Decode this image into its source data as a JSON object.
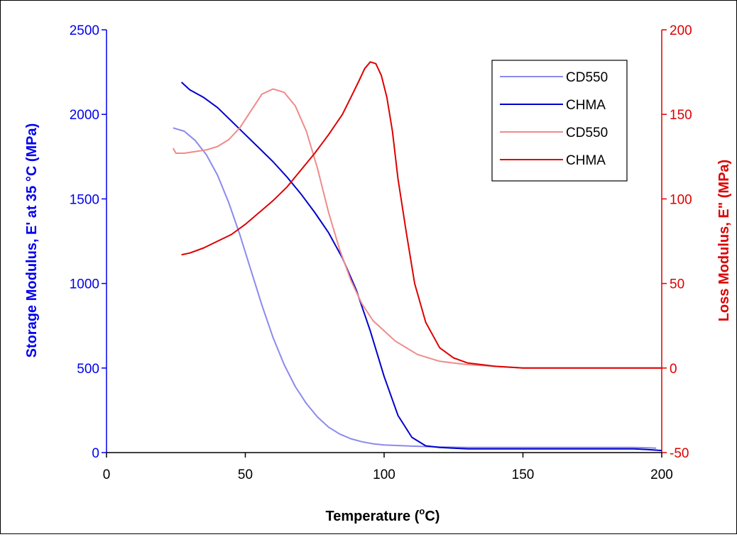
{
  "chart_data": {
    "type": "line",
    "xlabel": "Temperature (°C)",
    "xlabel_parts": {
      "pre": "Temperature (",
      "sup": "o",
      "post": "C)"
    },
    "ylabel_left": "Storage Modulus, E' at 35 °C (MPa)",
    "ylabel_right": "Loss Modulus, E\" (MPa)",
    "xlim": [
      0,
      200
    ],
    "ylim_left": [
      0,
      2500
    ],
    "ylim_right": [
      -50,
      200
    ],
    "x_ticks": [
      "0",
      "50",
      "100",
      "150",
      "200"
    ],
    "y_left_ticks": [
      "0",
      "500",
      "1000",
      "1500",
      "2000",
      "2500"
    ],
    "y_right_ticks": [
      "-50",
      "0",
      "50",
      "100",
      "150",
      "200"
    ],
    "grid": false,
    "legend_position": "top-right",
    "colors": {
      "left_axis": "#0000ee",
      "right_axis": "#dd0000",
      "cd550_storage": "#8a8aee",
      "chma_storage": "#0000cc",
      "cd550_loss": "#f08a8a",
      "chma_loss": "#dd0000"
    },
    "series": [
      {
        "name": "CD550",
        "axis": "left",
        "color": "#8a8aee",
        "x": [
          24,
          28,
          32,
          36,
          40,
          44,
          48,
          52,
          56,
          60,
          64,
          68,
          72,
          76,
          80,
          84,
          88,
          92,
          96,
          100,
          110,
          120,
          130,
          150,
          170,
          190,
          195,
          198
        ],
        "y": [
          1920,
          1900,
          1845,
          1760,
          1640,
          1480,
          1290,
          1080,
          870,
          680,
          520,
          390,
          290,
          210,
          150,
          110,
          82,
          64,
          52,
          45,
          38,
          33,
          30,
          30,
          30,
          30,
          28,
          26
        ]
      },
      {
        "name": "CHMA",
        "axis": "left",
        "color": "#0000cc",
        "x": [
          27,
          30,
          35,
          40,
          45,
          50,
          55,
          60,
          65,
          70,
          75,
          80,
          85,
          90,
          95,
          100,
          105,
          110,
          115,
          120,
          125,
          130,
          150,
          170,
          190,
          195,
          200
        ],
        "y": [
          2190,
          2145,
          2100,
          2040,
          1960,
          1880,
          1800,
          1720,
          1630,
          1530,
          1420,
          1300,
          1150,
          960,
          720,
          450,
          220,
          90,
          40,
          30,
          26,
          22,
          22,
          22,
          22,
          18,
          12
        ]
      },
      {
        "name": "CD550",
        "axis": "right",
        "color": "#f08a8a",
        "x": [
          24,
          25,
          28,
          32,
          36,
          40,
          44,
          48,
          52,
          56,
          60,
          64,
          68,
          72,
          76,
          80,
          84,
          88,
          92,
          96,
          100,
          104,
          108,
          112,
          120,
          130,
          140,
          150,
          170,
          190,
          200
        ],
        "y": [
          130,
          127,
          127,
          128,
          129,
          131,
          135,
          142,
          152,
          162,
          165,
          163,
          155,
          140,
          118,
          92,
          70,
          52,
          38,
          28,
          22,
          16,
          12,
          8,
          4,
          2,
          1,
          0,
          0,
          0,
          0
        ]
      },
      {
        "name": "CHMA",
        "axis": "right",
        "color": "#dd0000",
        "x": [
          27,
          30,
          35,
          40,
          45,
          50,
          55,
          60,
          65,
          70,
          75,
          80,
          85,
          88,
          91,
          93,
          95,
          97,
          99,
          101,
          103,
          105,
          108,
          111,
          115,
          120,
          125,
          130,
          140,
          150,
          170,
          190,
          200
        ],
        "y": [
          67,
          68,
          71,
          75,
          79,
          85,
          92,
          99,
          107,
          117,
          127,
          138,
          150,
          160,
          170,
          177,
          181,
          180,
          173,
          160,
          140,
          112,
          80,
          50,
          27,
          12,
          6,
          3,
          1,
          0,
          0,
          0,
          0
        ]
      }
    ]
  }
}
